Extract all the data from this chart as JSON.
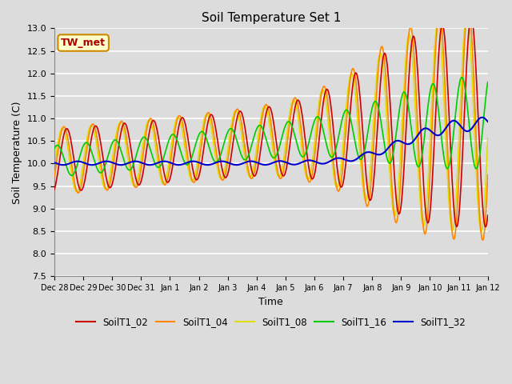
{
  "title": "Soil Temperature Set 1",
  "xlabel": "Time",
  "ylabel": "Soil Temperature (C)",
  "ylim": [
    7.5,
    13.0
  ],
  "background_color": "#dcdcdc",
  "plot_bg_color": "#dcdcdc",
  "grid_color": "white",
  "series_colors": {
    "SoilT1_02": "#cc0000",
    "SoilT1_04": "#ff8800",
    "SoilT1_08": "#dddd00",
    "SoilT1_16": "#00cc00",
    "SoilT1_32": "#0000cc"
  },
  "annotation_text": "TW_met",
  "annotation_color": "#aa0000",
  "annotation_bg": "#ffffcc",
  "annotation_border": "#cc8800",
  "x_tick_labels": [
    "Dec 28",
    "Dec 29",
    "Dec 30",
    "Dec 31",
    "Jan 1",
    "Jan 2",
    "Jan 3",
    "Jan 4",
    "Jan 5",
    "Jan 6",
    "Jan 7",
    "Jan 8",
    "Jan 9",
    "Jan 10",
    "Jan 11",
    "Jan 12"
  ],
  "n_days": 15
}
